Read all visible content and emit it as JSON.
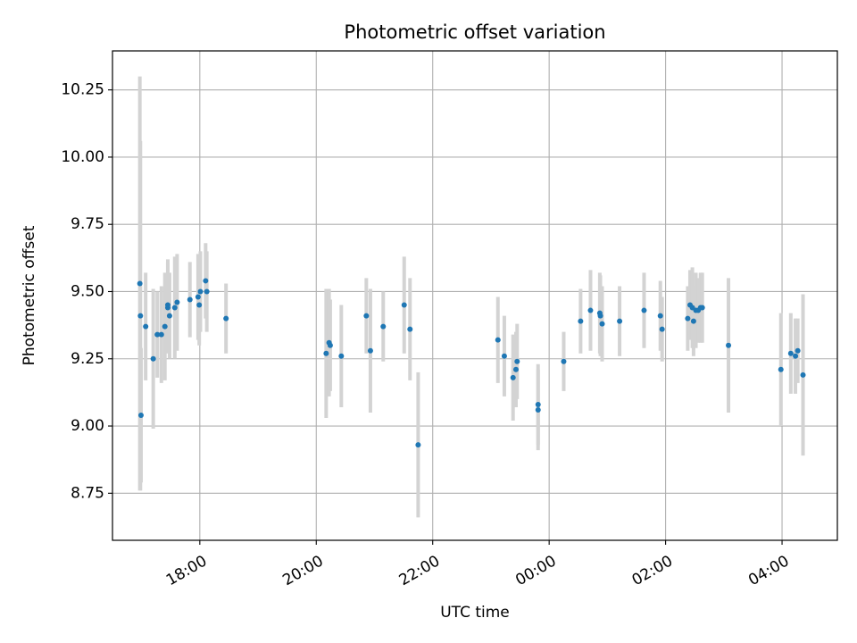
{
  "chart_data": {
    "type": "scatter",
    "title": "Photometric offset variation",
    "xlabel": "UTC time",
    "ylabel": "Photometric offset",
    "x_unit": "hours since 00:00 UTC (negative = previous day)",
    "xlim": [
      -7.5,
      4.95
    ],
    "ylim": [
      8.575,
      10.395
    ],
    "grid": true,
    "x_ticks": [
      {
        "value": -6,
        "label": "18:00"
      },
      {
        "value": -4,
        "label": "20:00"
      },
      {
        "value": -2,
        "label": "22:00"
      },
      {
        "value": 0,
        "label": "00:00"
      },
      {
        "value": 2,
        "label": "02:00"
      },
      {
        "value": 4,
        "label": "04:00"
      }
    ],
    "y_ticks": [
      {
        "value": 8.75,
        "label": "8.75"
      },
      {
        "value": 9.0,
        "label": "9.00"
      },
      {
        "value": 9.25,
        "label": "9.25"
      },
      {
        "value": 9.5,
        "label": "9.50"
      },
      {
        "value": 9.75,
        "label": "9.75"
      },
      {
        "value": 10.0,
        "label": "10.00"
      },
      {
        "value": 10.25,
        "label": "10.25"
      }
    ],
    "colors": {
      "point": "#1f77b4",
      "errorbar": "#d3d3d3",
      "grid": "#b0b0b0"
    },
    "points": [
      {
        "x": -7.03,
        "y": 9.53,
        "err": 0.77
      },
      {
        "x": -7.02,
        "y": 9.41,
        "err": 0.65
      },
      {
        "x": -7.01,
        "y": 9.04,
        "err": 0.25
      },
      {
        "x": -6.93,
        "y": 9.37,
        "err": 0.2
      },
      {
        "x": -6.8,
        "y": 9.25,
        "err": 0.26
      },
      {
        "x": -6.73,
        "y": 9.34,
        "err": 0.16
      },
      {
        "x": -6.66,
        "y": 9.34,
        "err": 0.18
      },
      {
        "x": -6.6,
        "y": 9.37,
        "err": 0.2
      },
      {
        "x": -6.55,
        "y": 9.45,
        "err": 0.17
      },
      {
        "x": -6.55,
        "y": 9.44,
        "err": 0.17
      },
      {
        "x": -6.52,
        "y": 9.41,
        "err": 0.16
      },
      {
        "x": -6.43,
        "y": 9.44,
        "err": 0.19
      },
      {
        "x": -6.39,
        "y": 9.46,
        "err": 0.18
      },
      {
        "x": -6.17,
        "y": 9.47,
        "err": 0.14
      },
      {
        "x": -6.03,
        "y": 9.48,
        "err": 0.16
      },
      {
        "x": -6.01,
        "y": 9.45,
        "err": 0.15
      },
      {
        "x": -5.99,
        "y": 9.5,
        "err": 0.15
      },
      {
        "x": -5.9,
        "y": 9.54,
        "err": 0.14
      },
      {
        "x": -5.88,
        "y": 9.5,
        "err": 0.15
      },
      {
        "x": -5.55,
        "y": 9.4,
        "err": 0.13
      },
      {
        "x": -3.83,
        "y": 9.27,
        "err": 0.24
      },
      {
        "x": -3.78,
        "y": 9.31,
        "err": 0.2
      },
      {
        "x": -3.76,
        "y": 9.3,
        "err": 0.17
      },
      {
        "x": -3.57,
        "y": 9.26,
        "err": 0.19
      },
      {
        "x": -3.14,
        "y": 9.41,
        "err": 0.14
      },
      {
        "x": -3.07,
        "y": 9.28,
        "err": 0.23
      },
      {
        "x": -2.85,
        "y": 9.37,
        "err": 0.13
      },
      {
        "x": -2.49,
        "y": 9.45,
        "err": 0.18
      },
      {
        "x": -2.39,
        "y": 9.36,
        "err": 0.19
      },
      {
        "x": -2.25,
        "y": 8.93,
        "err": 0.27
      },
      {
        "x": -0.88,
        "y": 9.32,
        "err": 0.16
      },
      {
        "x": -0.77,
        "y": 9.26,
        "err": 0.15
      },
      {
        "x": -0.62,
        "y": 9.18,
        "err": 0.16
      },
      {
        "x": -0.57,
        "y": 9.21,
        "err": 0.14
      },
      {
        "x": -0.55,
        "y": 9.24,
        "err": 0.14
      },
      {
        "x": -0.19,
        "y": 9.08,
        "err": 0.15
      },
      {
        "x": -0.19,
        "y": 9.06,
        "err": 0.15
      },
      {
        "x": 0.25,
        "y": 9.24,
        "err": 0.11
      },
      {
        "x": 0.54,
        "y": 9.39,
        "err": 0.12
      },
      {
        "x": 0.71,
        "y": 9.43,
        "err": 0.15
      },
      {
        "x": 0.87,
        "y": 9.42,
        "err": 0.15
      },
      {
        "x": 0.88,
        "y": 9.41,
        "err": 0.15
      },
      {
        "x": 0.91,
        "y": 9.38,
        "err": 0.14
      },
      {
        "x": 1.21,
        "y": 9.39,
        "err": 0.13
      },
      {
        "x": 1.63,
        "y": 9.43,
        "err": 0.14
      },
      {
        "x": 1.91,
        "y": 9.41,
        "err": 0.13
      },
      {
        "x": 1.94,
        "y": 9.36,
        "err": 0.12
      },
      {
        "x": 2.38,
        "y": 9.4,
        "err": 0.12
      },
      {
        "x": 2.42,
        "y": 9.45,
        "err": 0.13
      },
      {
        "x": 2.46,
        "y": 9.44,
        "err": 0.15
      },
      {
        "x": 2.48,
        "y": 9.39,
        "err": 0.13
      },
      {
        "x": 2.52,
        "y": 9.43,
        "err": 0.14
      },
      {
        "x": 2.56,
        "y": 9.43,
        "err": 0.12
      },
      {
        "x": 2.6,
        "y": 9.44,
        "err": 0.13
      },
      {
        "x": 2.63,
        "y": 9.44,
        "err": 0.13
      },
      {
        "x": 3.08,
        "y": 9.3,
        "err": 0.25
      },
      {
        "x": 3.98,
        "y": 9.21,
        "err": 0.21
      },
      {
        "x": 4.15,
        "y": 9.27,
        "err": 0.15
      },
      {
        "x": 4.23,
        "y": 9.26,
        "err": 0.14
      },
      {
        "x": 4.27,
        "y": 9.28,
        "err": 0.12
      },
      {
        "x": 4.36,
        "y": 9.19,
        "err": 0.3
      }
    ]
  }
}
